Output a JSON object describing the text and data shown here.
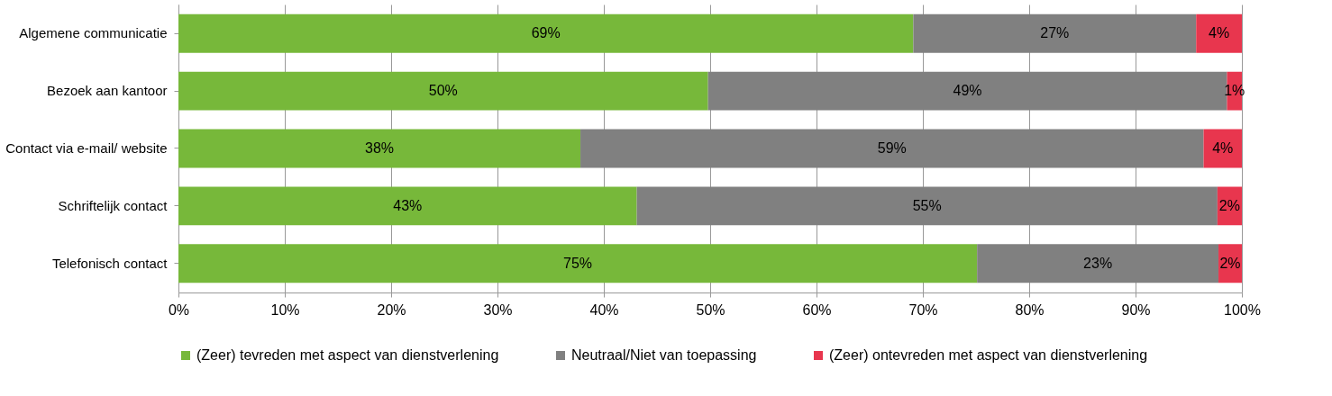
{
  "chart_data": {
    "type": "bar",
    "orientation": "horizontal",
    "stacked": true,
    "categories": [
      "Algemene communicatie",
      "Bezoek aan kantoor",
      "Contact via e-mail/ website",
      "Schriftelijk contact",
      "Telefonisch contact"
    ],
    "series": [
      {
        "name": "(Zeer) tevreden met aspect van dienstverlening",
        "color": "#77b83a",
        "values": [
          69.1,
          49.8,
          37.8,
          43.1,
          75.1
        ],
        "value_labels": [
          "69%",
          "50%",
          "38%",
          "43%",
          "75%"
        ]
      },
      {
        "name": "Neutraal/Niet van toepassing",
        "color": "#808080",
        "values": [
          26.6,
          48.8,
          58.6,
          54.6,
          22.7
        ],
        "value_labels": [
          "27%",
          "49%",
          "59%",
          "55%",
          "23%"
        ]
      },
      {
        "name": "(Zeer) ontevreden met aspect van dienstverlening",
        "color": "#e8364e",
        "values": [
          4.3,
          1.4,
          3.6,
          2.3,
          2.2
        ],
        "value_labels": [
          "4%",
          "1%",
          "4%",
          "2%",
          "2%"
        ]
      }
    ],
    "xlim": [
      0,
      100
    ],
    "xticks": [
      {
        "value": 0,
        "label": "0%"
      },
      {
        "value": 10,
        "label": "10%"
      },
      {
        "value": 20,
        "label": "20%"
      },
      {
        "value": 30,
        "label": "30%"
      },
      {
        "value": 40,
        "label": "40%"
      },
      {
        "value": 50,
        "label": "50%"
      },
      {
        "value": 60,
        "label": "60%"
      },
      {
        "value": 70,
        "label": "70%"
      },
      {
        "value": 80,
        "label": "80%"
      },
      {
        "value": 90,
        "label": "90%"
      },
      {
        "value": 100,
        "label": "100%"
      }
    ],
    "grid": "x",
    "legend": "bottom"
  }
}
